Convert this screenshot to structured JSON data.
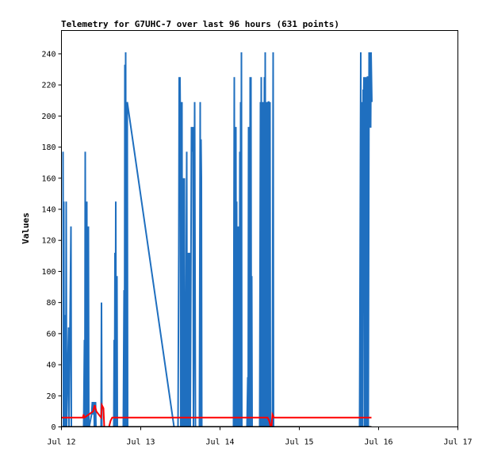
{
  "chart_data": {
    "type": "line",
    "title": "Telemetry for G7UHC-7 over last 96 hours (631 points)",
    "xlabel": "",
    "ylabel": "Values",
    "xlim": [
      "Jul 12",
      "Jul 17"
    ],
    "ylim": [
      0,
      255
    ],
    "x_ticks": [
      "Jul 12",
      "Jul 13",
      "Jul 14",
      "Jul 15",
      "Jul 16",
      "Jul 17"
    ],
    "y_ticks": [
      0,
      20,
      40,
      60,
      80,
      100,
      120,
      140,
      160,
      180,
      200,
      220,
      240
    ],
    "grid": false,
    "legend": "none",
    "x_unit": "days from Jul 12 00:00",
    "series": [
      {
        "color": "#1f6fbf",
        "points": [
          [
            0.02,
            177
          ],
          [
            0.025,
            0
          ],
          [
            0.03,
            145
          ],
          [
            0.035,
            0
          ],
          [
            0.04,
            72
          ],
          [
            0.045,
            0
          ],
          [
            0.05,
            72
          ],
          [
            0.055,
            0
          ],
          [
            0.06,
            145
          ],
          [
            0.065,
            0
          ],
          [
            0.09,
            64
          ],
          [
            0.095,
            0
          ],
          [
            0.12,
            129
          ],
          [
            0.125,
            0
          ],
          [
            0.28,
            0
          ],
          [
            0.29,
            56
          ],
          [
            0.295,
            0
          ],
          [
            0.3,
            177
          ],
          [
            0.305,
            0
          ],
          [
            0.31,
            88
          ],
          [
            0.315,
            0
          ],
          [
            0.32,
            145
          ],
          [
            0.325,
            0
          ],
          [
            0.33,
            97
          ],
          [
            0.335,
            0
          ],
          [
            0.34,
            129
          ],
          [
            0.345,
            0
          ],
          [
            0.35,
            0
          ],
          [
            0.38,
            8
          ],
          [
            0.39,
            16
          ],
          [
            0.4,
            8
          ],
          [
            0.41,
            16
          ],
          [
            0.415,
            0
          ],
          [
            0.43,
            16
          ],
          [
            0.435,
            0
          ],
          [
            0.5,
            0
          ],
          [
            0.505,
            80
          ],
          [
            0.51,
            0
          ],
          [
            0.52,
            0
          ],
          [
            0.66,
            0
          ],
          [
            0.665,
            56
          ],
          [
            0.67,
            0
          ],
          [
            0.675,
            112
          ],
          [
            0.68,
            0
          ],
          [
            0.685,
            145
          ],
          [
            0.69,
            0
          ],
          [
            0.7,
            97
          ],
          [
            0.705,
            0
          ],
          [
            0.78,
            0
          ],
          [
            0.79,
            88
          ],
          [
            0.795,
            0
          ],
          [
            0.8,
            233
          ],
          [
            0.805,
            0
          ],
          [
            0.81,
            241
          ],
          [
            0.815,
            0
          ],
          [
            0.82,
            160
          ],
          [
            0.825,
            0
          ],
          [
            0.83,
            209
          ],
          [
            0.835,
            0
          ],
          [
            0.83,
            209
          ],
          [
            1.42,
            0
          ],
          [
            1.47,
            0
          ],
          [
            1.48,
            112
          ],
          [
            1.485,
            225
          ],
          [
            1.49,
            177
          ],
          [
            1.495,
            225
          ],
          [
            1.5,
            193
          ],
          [
            1.505,
            0
          ],
          [
            1.51,
            209
          ],
          [
            1.515,
            97
          ],
          [
            1.52,
            209
          ],
          [
            1.525,
            0
          ],
          [
            1.53,
            160
          ],
          [
            1.535,
            0
          ],
          [
            1.54,
            112
          ],
          [
            1.545,
            0
          ],
          [
            1.55,
            160
          ],
          [
            1.555,
            0
          ],
          [
            1.56,
            56
          ],
          [
            1.565,
            0
          ],
          [
            1.58,
            177
          ],
          [
            1.585,
            0
          ],
          [
            1.6,
            112
          ],
          [
            1.605,
            0
          ],
          [
            1.61,
            72
          ],
          [
            1.615,
            0
          ],
          [
            1.62,
            112
          ],
          [
            1.625,
            0
          ],
          [
            1.64,
            193
          ],
          [
            1.645,
            177
          ],
          [
            1.65,
            193
          ],
          [
            1.655,
            177
          ],
          [
            1.66,
            193
          ],
          [
            1.665,
            0
          ],
          [
            1.68,
            209
          ],
          [
            1.685,
            104
          ],
          [
            1.69,
            0
          ],
          [
            1.7,
            0
          ],
          [
            1.74,
            0
          ],
          [
            1.75,
            209
          ],
          [
            1.755,
            0
          ],
          [
            1.76,
            185
          ],
          [
            1.765,
            160
          ],
          [
            1.77,
            0
          ],
          [
            1.8,
            0
          ],
          [
            2.17,
            0
          ],
          [
            2.18,
            225
          ],
          [
            2.185,
            0
          ],
          [
            2.2,
            193
          ],
          [
            2.205,
            0
          ],
          [
            2.21,
            145
          ],
          [
            2.215,
            0
          ],
          [
            2.22,
            48
          ],
          [
            2.225,
            0
          ],
          [
            2.23,
            129
          ],
          [
            2.235,
            0
          ],
          [
            2.24,
            64
          ],
          [
            2.245,
            0
          ],
          [
            2.25,
            177
          ],
          [
            2.255,
            0
          ],
          [
            2.26,
            209
          ],
          [
            2.265,
            0
          ],
          [
            2.27,
            241
          ],
          [
            2.275,
            0
          ],
          [
            2.28,
            0
          ],
          [
            2.34,
            0
          ],
          [
            2.35,
            32
          ],
          [
            2.355,
            0
          ],
          [
            2.36,
            193
          ],
          [
            2.365,
            0
          ],
          [
            2.37,
            97
          ],
          [
            2.375,
            0
          ],
          [
            2.38,
            225
          ],
          [
            2.385,
            0
          ],
          [
            2.39,
            225
          ],
          [
            2.395,
            0
          ],
          [
            2.4,
            97
          ],
          [
            2.405,
            0
          ],
          [
            2.42,
            0
          ],
          [
            2.5,
            0
          ],
          [
            2.51,
            209
          ],
          [
            2.515,
            0
          ],
          [
            2.52,
            225
          ],
          [
            2.525,
            0
          ],
          [
            2.53,
            64
          ],
          [
            2.535,
            0
          ],
          [
            2.54,
            209
          ],
          [
            2.545,
            193
          ],
          [
            2.55,
            0
          ],
          [
            2.56,
            225
          ],
          [
            2.565,
            0
          ],
          [
            2.57,
            241
          ],
          [
            2.575,
            0
          ],
          [
            2.58,
            209
          ],
          [
            2.585,
            145
          ],
          [
            2.59,
            0
          ],
          [
            2.6,
            209
          ],
          [
            2.605,
            0
          ],
          [
            2.61,
            209
          ],
          [
            2.615,
            209
          ],
          [
            2.62,
            0
          ],
          [
            2.63,
            209
          ],
          [
            2.635,
            0
          ],
          [
            2.66,
            0
          ],
          [
            2.67,
            241
          ],
          [
            2.675,
            0
          ],
          [
            3.76,
            0
          ],
          [
            3.765,
            80
          ],
          [
            3.77,
            160
          ],
          [
            3.775,
            241
          ],
          [
            3.78,
            0
          ],
          [
            3.79,
            209
          ],
          [
            3.795,
            0
          ],
          [
            3.8,
            112
          ],
          [
            3.805,
            217
          ],
          [
            3.81,
            209
          ],
          [
            3.815,
            225
          ],
          [
            3.82,
            0
          ],
          [
            3.83,
            112
          ],
          [
            3.835,
            225
          ],
          [
            3.84,
            0
          ],
          [
            3.85,
            225
          ],
          [
            3.855,
            0
          ],
          [
            3.86,
            225
          ],
          [
            3.865,
            225
          ],
          [
            3.87,
            0
          ],
          [
            3.88,
            241
          ],
          [
            3.885,
            193
          ],
          [
            3.89,
            241
          ],
          [
            3.895,
            193
          ],
          [
            3.9,
            193
          ],
          [
            3.905,
            241
          ],
          [
            3.91,
            225
          ],
          [
            3.915,
            209
          ]
        ]
      },
      {
        "color": "#ff0000",
        "points": [
          [
            0.0,
            6
          ],
          [
            0.27,
            6
          ],
          [
            0.28,
            8
          ],
          [
            0.285,
            6
          ],
          [
            0.29,
            6
          ],
          [
            0.4,
            10
          ],
          [
            0.42,
            14
          ],
          [
            0.44,
            10
          ],
          [
            0.47,
            8
          ],
          [
            0.5,
            6
          ],
          [
            0.51,
            14
          ],
          [
            0.53,
            12
          ],
          [
            0.54,
            0
          ],
          [
            0.6,
            0
          ],
          [
            0.62,
            4
          ],
          [
            0.64,
            6
          ],
          [
            0.66,
            6
          ],
          [
            0.7,
            6
          ],
          [
            1.42,
            6
          ],
          [
            2.6,
            6
          ],
          [
            2.62,
            4
          ],
          [
            2.64,
            0
          ],
          [
            2.65,
            0
          ],
          [
            2.66,
            8
          ],
          [
            2.68,
            6
          ],
          [
            2.7,
            6
          ],
          [
            3.91,
            6
          ]
        ]
      },
      {
        "color": "#000000",
        "points": [
          [
            0.0,
            0
          ],
          [
            3.91,
            0
          ]
        ]
      }
    ]
  }
}
